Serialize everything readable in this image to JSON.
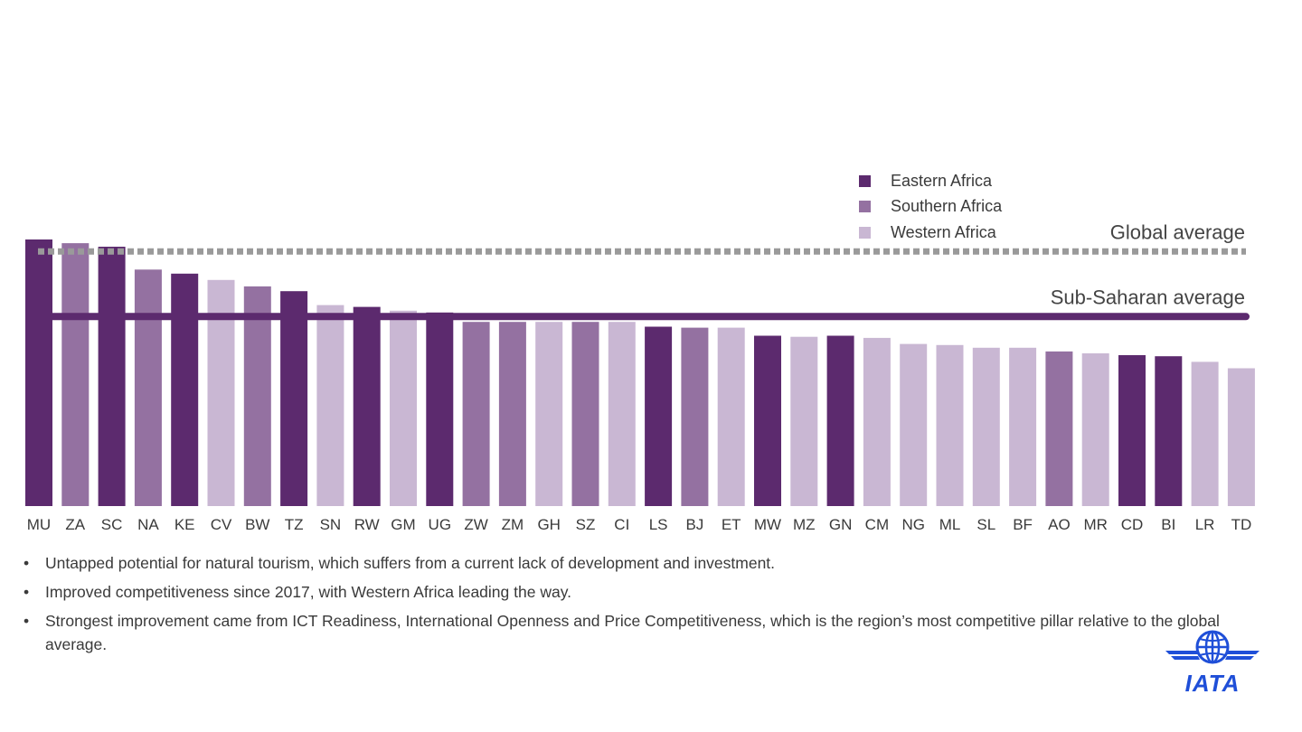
{
  "colors": {
    "eastern": "#5c2a6e",
    "southern": "#9471a1",
    "western": "#c9b7d3",
    "global_line": "#9a9a9a",
    "ssa_line": "#5c2a6e",
    "logo_blue": "#1f4fd8"
  },
  "legend": [
    {
      "key": "eastern",
      "label": "Eastern Africa"
    },
    {
      "key": "southern",
      "label": "Southern Africa"
    },
    {
      "key": "western",
      "label": "Western Africa"
    }
  ],
  "chart_data": {
    "type": "bar",
    "categories": [
      "MU",
      "ZA",
      "SC",
      "NA",
      "KE",
      "CV",
      "BW",
      "TZ",
      "SN",
      "RW",
      "GM",
      "UG",
      "ZW",
      "ZM",
      "GH",
      "SZ",
      "CI",
      "LS",
      "BJ",
      "ET",
      "MW",
      "MZ",
      "GN",
      "CM",
      "NG",
      "ML",
      "SL",
      "BF",
      "AO",
      "MR",
      "CD",
      "BI",
      "LR",
      "TD"
    ],
    "regions": [
      "eastern",
      "southern",
      "eastern",
      "southern",
      "eastern",
      "western",
      "southern",
      "eastern",
      "western",
      "eastern",
      "western",
      "eastern",
      "southern",
      "southern",
      "western",
      "southern",
      "western",
      "eastern",
      "southern",
      "western",
      "eastern",
      "western",
      "eastern",
      "western",
      "western",
      "western",
      "western",
      "western",
      "southern",
      "western",
      "eastern",
      "eastern",
      "western",
      "western"
    ],
    "values": [
      100,
      98.6,
      97.3,
      88.7,
      87.2,
      84.8,
      82.4,
      80.6,
      75.4,
      74.7,
      73.3,
      72.6,
      69.1,
      69.1,
      69.1,
      69.1,
      69.1,
      67.3,
      66.9,
      66.9,
      63.9,
      63.5,
      63.9,
      63.1,
      60.8,
      60.4,
      59.4,
      59.4,
      58,
      57.3,
      56.6,
      56.2,
      54.1,
      51.7
    ],
    "reference_lines": [
      {
        "name": "Global average",
        "value": 95.5,
        "style": "dashed"
      },
      {
        "name": "Sub-Saharan average",
        "value": 71.1,
        "style": "solid"
      }
    ],
    "ylim": [
      0,
      100
    ],
    "grid": false,
    "legend_position": "top-right",
    "title": "",
    "xlabel": "",
    "ylabel": ""
  },
  "bullets": [
    "Untapped potential for natural tourism, which suffers from a current lack of development and investment.",
    "Improved competitiveness since 2017, with Western Africa leading the way.",
    "Strongest improvement came from ICT Readiness, International Openness and Price Competitiveness, which is the region’s most competitive pillar relative to the global average."
  ],
  "logo": {
    "text": "IATA"
  }
}
